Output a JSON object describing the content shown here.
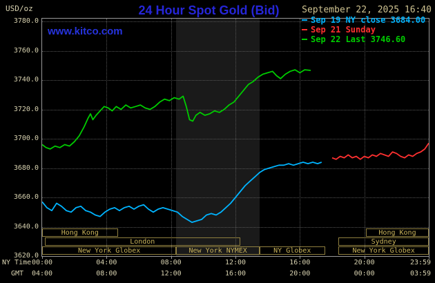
{
  "header": {
    "unit_label": "USD/oz",
    "title": "24 Hour Spot Gold (Bid)",
    "datetime": "September 22, 2025 16:40",
    "legend": [
      {
        "label": "Sep 19 NY close 3684.00",
        "color": "#00b4ff"
      },
      {
        "label": "Sep 21 Sunday",
        "color": "#ff3030"
      },
      {
        "label": "Sep 22 Last 3746.60",
        "color": "#00cc00"
      }
    ]
  },
  "plot": {
    "watermark": "www.kitco.com"
  },
  "axes": {
    "y_ticks": [
      "3780.0",
      "3760.0",
      "3740.0",
      "3720.0",
      "3700.0",
      "3680.0",
      "3660.0",
      "3640.0",
      "3620.0"
    ],
    "x_rows": [
      {
        "label": "NY Time",
        "ticks": [
          "00:00",
          "04:00",
          "08:00",
          "12:00",
          "16:00",
          "20:00",
          "23:59"
        ]
      },
      {
        "label": "GMT",
        "ticks": [
          "04:00",
          "08:00",
          "12:00",
          "16:00",
          "20:00",
          "00:00",
          "03:59"
        ]
      }
    ]
  },
  "sessions": [
    {
      "row": 0,
      "start": 0,
      "end": 4.7,
      "label": "Hong Kong"
    },
    {
      "row": 0,
      "start": 20.1,
      "end": 24,
      "label": "Hong Kong"
    },
    {
      "row": 1,
      "start": 0.15,
      "end": 12.3,
      "label": "London"
    },
    {
      "row": 1,
      "start": 18.4,
      "end": 24,
      "label": "Sydney"
    },
    {
      "row": 2,
      "start": 0,
      "end": 8.33,
      "label": "New York Globex"
    },
    {
      "row": 2,
      "start": 8.33,
      "end": 13.5,
      "label": "New York NYMEX"
    },
    {
      "row": 2,
      "start": 13.5,
      "end": 17.55,
      "label": "NY Globex"
    },
    {
      "row": 2,
      "start": 18.4,
      "end": 24,
      "label": "New York Globex"
    }
  ],
  "colors": {
    "background": "#000000",
    "frame": "#9a9a9a",
    "grid": "#565656",
    "band": "#1a1a1a",
    "axis_text": "#d8d2b0",
    "date_text": "#cfc391",
    "title_blue": "#2626d8",
    "watermark_blue": "#2633dd",
    "session_border": "#8f7f3f",
    "session_text": "#c9b35a"
  },
  "chart_data": {
    "type": "line",
    "title": "24 Hour Spot Gold (Bid)",
    "ylabel": "USD/oz",
    "xlabel": "NY Time (hours, second scale GMT)",
    "xlim": [
      0,
      24
    ],
    "ylim": [
      3620,
      3780
    ],
    "y_gridline_step": 20,
    "x_grid_hours": [
      4,
      8,
      12,
      16,
      20
    ],
    "x_tick_hours": [
      0,
      4,
      8,
      12,
      16,
      20,
      23.98
    ],
    "grid": true,
    "legend_position": "top-right",
    "shaded_region": {
      "label": "New York NYMEX floor session",
      "x0": 8.33,
      "x1": 13.5
    },
    "series": [
      {
        "name": "Sep 19 NY close 3684.00",
        "color": "#00b4ff",
        "points": [
          [
            0,
            3657
          ],
          [
            0.3,
            3653
          ],
          [
            0.6,
            3651
          ],
          [
            0.9,
            3656
          ],
          [
            1.2,
            3654
          ],
          [
            1.5,
            3651
          ],
          [
            1.8,
            3650
          ],
          [
            2.1,
            3653
          ],
          [
            2.4,
            3654
          ],
          [
            2.7,
            3651
          ],
          [
            3,
            3650
          ],
          [
            3.3,
            3648
          ],
          [
            3.6,
            3647
          ],
          [
            3.9,
            3650
          ],
          [
            4.2,
            3652
          ],
          [
            4.5,
            3653
          ],
          [
            4.8,
            3651
          ],
          [
            5.1,
            3653
          ],
          [
            5.4,
            3654
          ],
          [
            5.7,
            3652
          ],
          [
            6,
            3654
          ],
          [
            6.3,
            3655
          ],
          [
            6.6,
            3652
          ],
          [
            6.9,
            3650
          ],
          [
            7.2,
            3652
          ],
          [
            7.5,
            3653
          ],
          [
            7.8,
            3652
          ],
          [
            8.1,
            3651
          ],
          [
            8.4,
            3650
          ],
          [
            8.7,
            3647
          ],
          [
            9,
            3645
          ],
          [
            9.3,
            3643
          ],
          [
            9.6,
            3644
          ],
          [
            9.9,
            3645
          ],
          [
            10.2,
            3648
          ],
          [
            10.5,
            3649
          ],
          [
            10.8,
            3648
          ],
          [
            11.1,
            3650
          ],
          [
            11.4,
            3653
          ],
          [
            11.7,
            3656
          ],
          [
            12,
            3660
          ],
          [
            12.3,
            3664
          ],
          [
            12.6,
            3668
          ],
          [
            12.9,
            3671
          ],
          [
            13.2,
            3674
          ],
          [
            13.5,
            3677
          ],
          [
            13.8,
            3679
          ],
          [
            14.1,
            3680
          ],
          [
            14.4,
            3681
          ],
          [
            14.7,
            3682
          ],
          [
            15,
            3682
          ],
          [
            15.3,
            3683
          ],
          [
            15.6,
            3682
          ],
          [
            15.9,
            3683
          ],
          [
            16.2,
            3684
          ],
          [
            16.5,
            3683
          ],
          [
            16.8,
            3684
          ],
          [
            17.1,
            3683
          ],
          [
            17.35,
            3684
          ]
        ]
      },
      {
        "name": "Sep 21 Sunday",
        "color": "#ff3030",
        "points": [
          [
            18,
            3687
          ],
          [
            18.25,
            3686
          ],
          [
            18.5,
            3688
          ],
          [
            18.75,
            3687
          ],
          [
            19,
            3689
          ],
          [
            19.25,
            3687
          ],
          [
            19.5,
            3688
          ],
          [
            19.75,
            3686
          ],
          [
            20,
            3688
          ],
          [
            20.25,
            3687
          ],
          [
            20.5,
            3689
          ],
          [
            20.75,
            3688
          ],
          [
            21,
            3690
          ],
          [
            21.25,
            3689
          ],
          [
            21.5,
            3688
          ],
          [
            21.75,
            3691
          ],
          [
            22,
            3690
          ],
          [
            22.25,
            3688
          ],
          [
            22.5,
            3687
          ],
          [
            22.75,
            3689
          ],
          [
            23,
            3688
          ],
          [
            23.25,
            3690
          ],
          [
            23.5,
            3691
          ],
          [
            23.75,
            3693
          ],
          [
            24,
            3697
          ]
        ]
      },
      {
        "name": "Sep 22 Last 3746.60",
        "color": "#00cc00",
        "points": [
          [
            0,
            3696
          ],
          [
            0.25,
            3694
          ],
          [
            0.5,
            3693
          ],
          [
            0.8,
            3695
          ],
          [
            1.1,
            3694
          ],
          [
            1.4,
            3696
          ],
          [
            1.7,
            3695
          ],
          [
            2,
            3698
          ],
          [
            2.3,
            3702
          ],
          [
            2.6,
            3708
          ],
          [
            2.85,
            3714
          ],
          [
            3,
            3717
          ],
          [
            3.15,
            3713
          ],
          [
            3.35,
            3716
          ],
          [
            3.6,
            3719
          ],
          [
            3.85,
            3722
          ],
          [
            4.1,
            3721
          ],
          [
            4.35,
            3719
          ],
          [
            4.6,
            3722
          ],
          [
            4.9,
            3720
          ],
          [
            5.2,
            3723
          ],
          [
            5.5,
            3721
          ],
          [
            5.8,
            3722
          ],
          [
            6.1,
            3723
          ],
          [
            6.4,
            3721
          ],
          [
            6.7,
            3720
          ],
          [
            7,
            3722
          ],
          [
            7.3,
            3725
          ],
          [
            7.6,
            3727
          ],
          [
            7.9,
            3726
          ],
          [
            8.2,
            3728
          ],
          [
            8.5,
            3727
          ],
          [
            8.75,
            3729
          ],
          [
            8.95,
            3722
          ],
          [
            9.15,
            3713
          ],
          [
            9.35,
            3712
          ],
          [
            9.55,
            3716
          ],
          [
            9.8,
            3718
          ],
          [
            10.1,
            3716
          ],
          [
            10.4,
            3717
          ],
          [
            10.7,
            3719
          ],
          [
            11,
            3718
          ],
          [
            11.3,
            3720
          ],
          [
            11.6,
            3723
          ],
          [
            11.9,
            3725
          ],
          [
            12.2,
            3729
          ],
          [
            12.5,
            3733
          ],
          [
            12.8,
            3737
          ],
          [
            13.1,
            3739
          ],
          [
            13.4,
            3742
          ],
          [
            13.7,
            3744
          ],
          [
            14,
            3745
          ],
          [
            14.3,
            3746
          ],
          [
            14.55,
            3743
          ],
          [
            14.8,
            3741
          ],
          [
            15.1,
            3744
          ],
          [
            15.4,
            3746
          ],
          [
            15.7,
            3747
          ],
          [
            16,
            3745
          ],
          [
            16.3,
            3747
          ],
          [
            16.67,
            3746.6
          ]
        ]
      }
    ]
  }
}
